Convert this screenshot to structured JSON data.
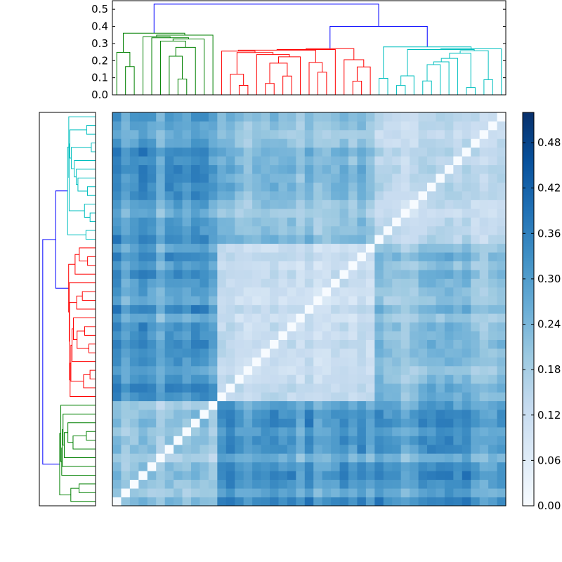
{
  "chart_data": [
    {
      "type": "dendrogram",
      "panel": "top",
      "ylim": [
        0,
        0.55
      ],
      "y_ticks": [
        "0.0",
        "0.1",
        "0.2",
        "0.3",
        "0.4",
        "0.5"
      ],
      "y_tick_values": [
        0.0,
        0.1,
        0.2,
        0.3,
        0.4,
        0.5
      ],
      "root_height": 0.53,
      "clusters": [
        {
          "color": "#008000",
          "leaf_count": 12,
          "merge_height": 0.36
        },
        {
          "color": "#ff0000",
          "leaf_count": 18,
          "merge_height": 0.27
        },
        {
          "color": "#00bfbf",
          "leaf_count": 15,
          "merge_height": 0.28
        }
      ],
      "link_color_above_threshold": "#0000ff",
      "leaf_count": 45
    },
    {
      "type": "dendrogram",
      "panel": "left",
      "orientation": "right",
      "leaf_count": 45,
      "clusters": [
        {
          "color": "#00bfbf",
          "position": "top"
        },
        {
          "color": "#ff0000",
          "position": "middle"
        },
        {
          "color": "#008000",
          "position": "bottom"
        }
      ],
      "link_color_above_threshold": "#0000ff"
    },
    {
      "type": "heatmap",
      "rows": 45,
      "cols": 45,
      "colormap": "Blues",
      "diagonal_value": 0.0,
      "vmin": 0.0,
      "vmax": 0.52,
      "colorbar": {
        "ticks": [
          "0.00",
          "0.06",
          "0.12",
          "0.18",
          "0.24",
          "0.30",
          "0.36",
          "0.42",
          "0.48"
        ],
        "tick_values": [
          0.0,
          0.06,
          0.12,
          0.18,
          0.24,
          0.3,
          0.36,
          0.42,
          0.48
        ]
      },
      "bottom_left_to_top_right_diagonal": true
    }
  ]
}
